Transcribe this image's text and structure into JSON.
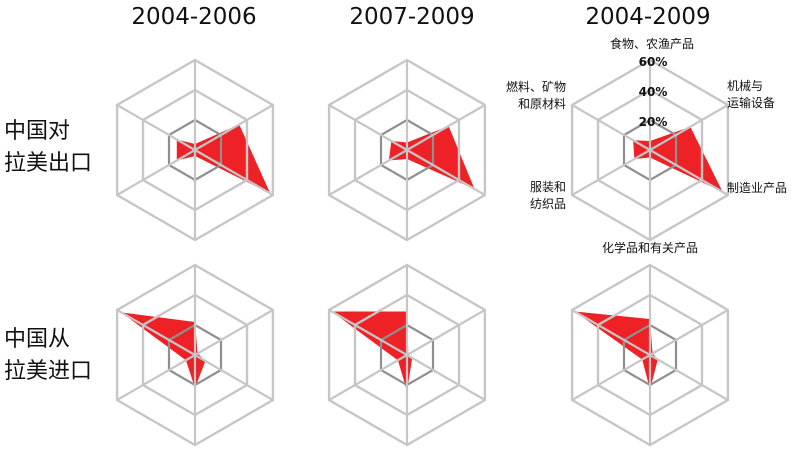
{
  "column_titles": [
    "2004-2006",
    "2007-2009",
    "2004-2009"
  ],
  "row_labels": [
    {
      "line1": "中国对",
      "line2": "拉美出口"
    },
    {
      "line1": "中国从",
      "line2": "拉美进口"
    }
  ],
  "axis_labels": {
    "top": "食物、农渔产品",
    "upper_right": [
      "机械与",
      "运输设备"
    ],
    "lower_right": "制造业产品",
    "bottom": "化学品和有关产品",
    "lower_left": [
      "服装和",
      "纺织品"
    ],
    "upper_left": [
      "燃料、矿物",
      "和原材料"
    ]
  },
  "ring_labels": [
    "20%",
    "40%",
    "60%"
  ],
  "colors": {
    "fill": "#ee2226",
    "grid": "#c6c6c6",
    "inner_grid": "#8f8f8f"
  },
  "chart_data": {
    "type": "radar",
    "title": "",
    "axes": [
      "食物、农渔产品",
      "机械与运输设备",
      "制造业产品",
      "化学品和有关产品",
      "服装和纺织品",
      "燃料、矿物和原材料"
    ],
    "rlim": [
      0,
      60
    ],
    "ticks": [
      20,
      40,
      60
    ],
    "grid": true,
    "panels": [
      {
        "row": "中国对拉美出口",
        "period": "2004-2006",
        "values": [
          4,
          34,
          58,
          4,
          14,
          14
        ]
      },
      {
        "row": "中国对拉美出口",
        "period": "2007-2009",
        "values": [
          5,
          32,
          52,
          6,
          14,
          12
        ]
      },
      {
        "row": "中国对拉美出口",
        "period": "2004-2009",
        "values": [
          6,
          31,
          56,
          5,
          12,
          13
        ]
      },
      {
        "row": "中国从拉美进口",
        "period": "2004-2006",
        "values": [
          22,
          2,
          8,
          22,
          7,
          57
        ]
      },
      {
        "row": "中国从拉美进口",
        "period": "2007-2009",
        "values": [
          29,
          1,
          4,
          24,
          7,
          58
        ]
      },
      {
        "row": "中国从拉美进口",
        "period": "2004-2009",
        "values": [
          24,
          2,
          6,
          23,
          6,
          58
        ]
      }
    ]
  }
}
